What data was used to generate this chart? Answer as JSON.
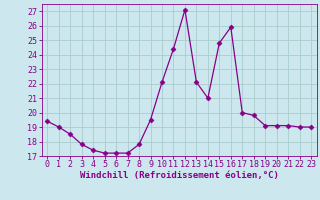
{
  "x": [
    0,
    1,
    2,
    3,
    4,
    5,
    6,
    7,
    8,
    9,
    10,
    11,
    12,
    13,
    14,
    15,
    16,
    17,
    18,
    19,
    20,
    21,
    22,
    23
  ],
  "y": [
    19.4,
    19.0,
    18.5,
    17.8,
    17.4,
    17.2,
    17.2,
    17.2,
    17.8,
    19.5,
    22.1,
    24.4,
    27.1,
    22.1,
    21.0,
    24.8,
    25.9,
    20.0,
    19.8,
    19.1,
    19.1,
    19.1,
    19.0,
    19.0
  ],
  "line_color": "#880088",
  "marker": "D",
  "marker_size": 2.5,
  "bg_color": "#cce8ee",
  "grid_color": "#aacccc",
  "xlabel": "Windchill (Refroidissement éolien,°C)",
  "ylim": [
    17,
    27.5
  ],
  "xlim": [
    -0.5,
    23.5
  ],
  "yticks": [
    17,
    18,
    19,
    20,
    21,
    22,
    23,
    24,
    25,
    26,
    27
  ],
  "xticks": [
    0,
    1,
    2,
    3,
    4,
    5,
    6,
    7,
    8,
    9,
    10,
    11,
    12,
    13,
    14,
    15,
    16,
    17,
    18,
    19,
    20,
    21,
    22,
    23
  ],
  "label_fontsize": 6.5,
  "tick_fontsize": 6.0
}
